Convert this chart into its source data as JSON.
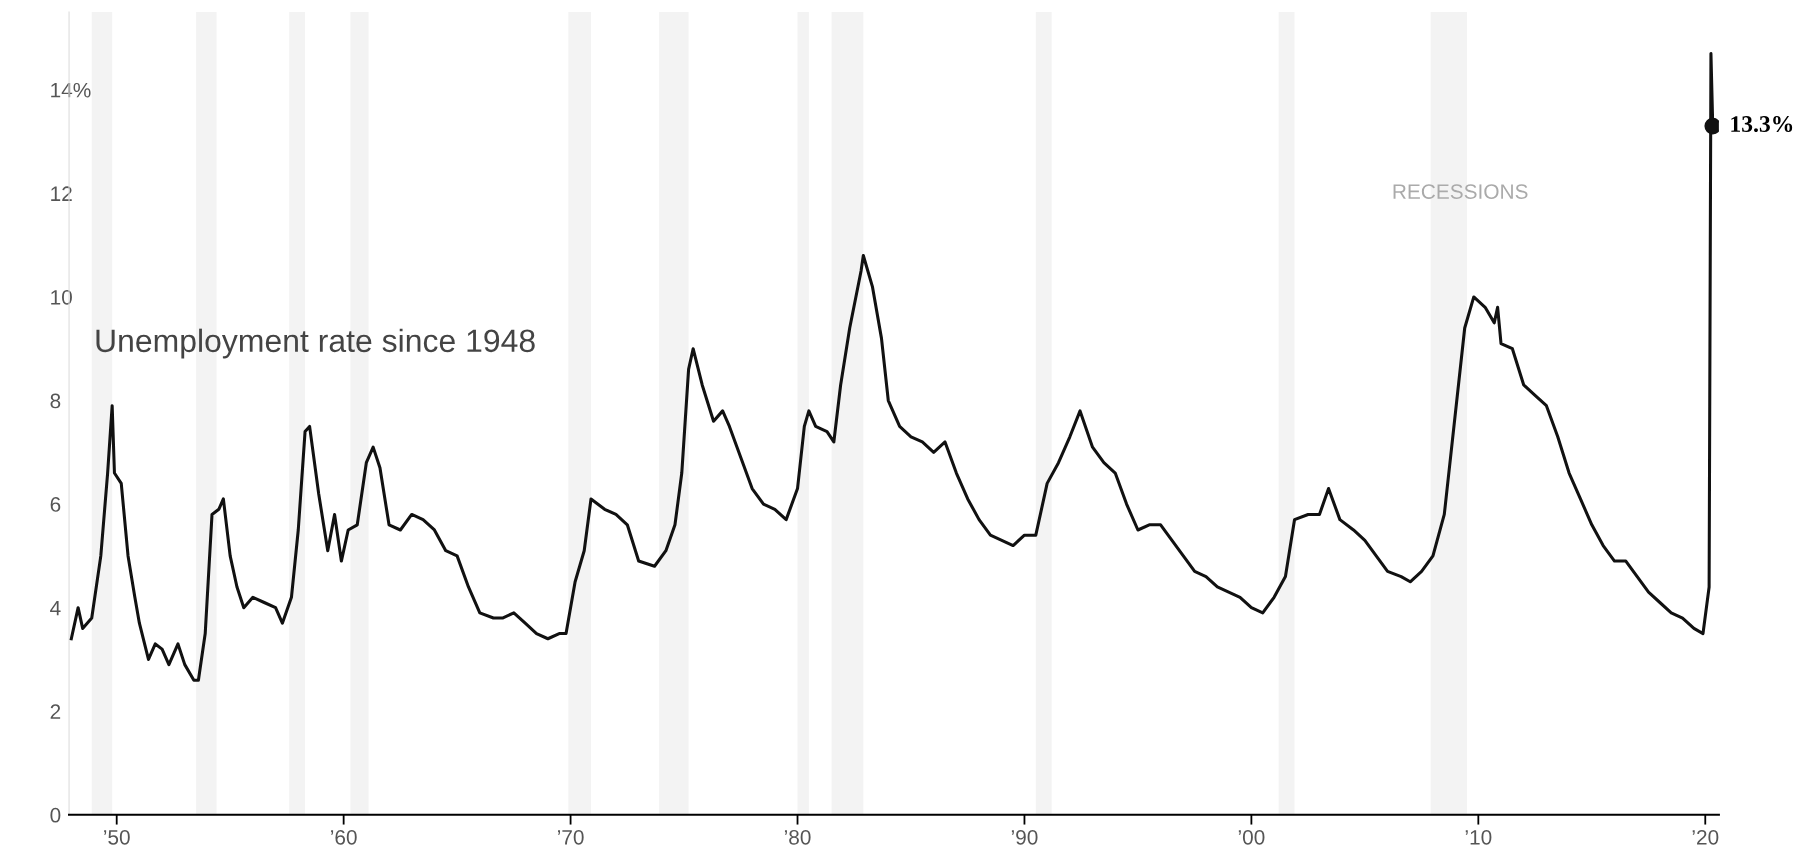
{
  "chart_data": {
    "type": "line",
    "title": "Unemployment rate since 1948",
    "x": [
      1948.0,
      1948.3,
      1948.5,
      1948.9,
      1949.3,
      1949.6,
      1949.8,
      1949.9,
      1950.2,
      1950.5,
      1950.8,
      1951.0,
      1951.4,
      1951.7,
      1952.0,
      1952.3,
      1952.7,
      1953.0,
      1953.4,
      1953.6,
      1953.9,
      1954.2,
      1954.5,
      1954.7,
      1955.0,
      1955.3,
      1955.6,
      1956.0,
      1956.5,
      1957.0,
      1957.3,
      1957.7,
      1958.0,
      1958.3,
      1958.5,
      1958.9,
      1959.3,
      1959.6,
      1959.9,
      1960.2,
      1960.6,
      1961.0,
      1961.3,
      1961.6,
      1962.0,
      1962.5,
      1963.0,
      1963.5,
      1964.0,
      1964.5,
      1965.0,
      1965.5,
      1966.0,
      1966.6,
      1967.0,
      1967.5,
      1968.0,
      1968.5,
      1969.0,
      1969.5,
      1969.8,
      1970.2,
      1970.6,
      1970.9,
      1971.5,
      1972.0,
      1972.5,
      1973.0,
      1973.7,
      1974.2,
      1974.6,
      1974.9,
      1975.2,
      1975.4,
      1975.8,
      1976.3,
      1976.7,
      1977.0,
      1977.5,
      1978.0,
      1978.5,
      1979.0,
      1979.5,
      1980.0,
      1980.3,
      1980.5,
      1980.8,
      1981.3,
      1981.6,
      1981.9,
      1982.3,
      1982.8,
      1982.9,
      1983.3,
      1983.7,
      1984.0,
      1984.5,
      1985.0,
      1985.5,
      1986.0,
      1986.5,
      1987.0,
      1987.5,
      1988.0,
      1988.5,
      1989.0,
      1989.5,
      1990.0,
      1990.5,
      1991.0,
      1991.5,
      1992.0,
      1992.45,
      1993.0,
      1993.5,
      1994.0,
      1994.5,
      1995.0,
      1995.5,
      1996.0,
      1996.5,
      1997.0,
      1997.5,
      1998.0,
      1998.5,
      1999.0,
      1999.5,
      2000.0,
      2000.5,
      2001.0,
      2001.5,
      2001.9,
      2002.5,
      2003.0,
      2003.4,
      2003.9,
      2004.5,
      2005.0,
      2005.5,
      2006.0,
      2006.6,
      2007.0,
      2007.5,
      2008.0,
      2008.5,
      2009.0,
      2009.4,
      2009.8,
      2010.3,
      2010.7,
      2010.85,
      2011.0,
      2011.5,
      2012.0,
      2012.5,
      2013.0,
      2013.5,
      2014.0,
      2014.5,
      2015.0,
      2015.5,
      2016.0,
      2016.5,
      2017.0,
      2017.5,
      2018.0,
      2018.5,
      2019.0,
      2019.5,
      2019.9,
      2020.17,
      2020.25,
      2020.33
    ],
    "series": [
      {
        "color": "#111111",
        "values": [
          3.4,
          4.0,
          3.6,
          3.8,
          5.0,
          6.6,
          7.9,
          6.6,
          6.4,
          5.0,
          4.2,
          3.7,
          3.0,
          3.3,
          3.2,
          2.9,
          3.3,
          2.9,
          2.6,
          2.6,
          3.5,
          5.8,
          5.9,
          6.1,
          5.0,
          4.4,
          4.0,
          4.2,
          4.1,
          4.0,
          3.7,
          4.2,
          5.5,
          7.4,
          7.5,
          6.2,
          5.1,
          5.8,
          4.9,
          5.5,
          5.6,
          6.8,
          7.1,
          6.7,
          5.6,
          5.5,
          5.8,
          5.7,
          5.5,
          5.1,
          5.0,
          4.4,
          3.9,
          3.8,
          3.8,
          3.9,
          3.7,
          3.5,
          3.4,
          3.5,
          3.5,
          4.5,
          5.1,
          6.1,
          5.9,
          5.8,
          5.6,
          4.9,
          4.8,
          5.1,
          5.6,
          6.6,
          8.6,
          9.0,
          8.3,
          7.6,
          7.8,
          7.5,
          6.9,
          6.3,
          6.0,
          5.9,
          5.7,
          6.3,
          7.5,
          7.8,
          7.5,
          7.4,
          7.2,
          8.3,
          9.4,
          10.5,
          10.8,
          10.2,
          9.2,
          8.0,
          7.5,
          7.3,
          7.2,
          7.0,
          7.2,
          6.6,
          6.1,
          5.7,
          5.4,
          5.3,
          5.2,
          5.4,
          5.4,
          6.4,
          6.8,
          7.3,
          7.8,
          7.1,
          6.8,
          6.6,
          6.0,
          5.5,
          5.6,
          5.6,
          5.3,
          5.0,
          4.7,
          4.6,
          4.4,
          4.3,
          4.2,
          4.0,
          3.9,
          4.2,
          4.6,
          5.7,
          5.8,
          5.8,
          6.3,
          5.7,
          5.5,
          5.3,
          5.0,
          4.7,
          4.6,
          4.5,
          4.7,
          5.0,
          5.8,
          7.8,
          9.4,
          10.0,
          9.8,
          9.5,
          9.8,
          9.1,
          9.0,
          8.3,
          8.1,
          7.9,
          7.3,
          6.6,
          6.1,
          5.6,
          5.2,
          4.9,
          4.9,
          4.6,
          4.3,
          4.1,
          3.9,
          3.8,
          3.6,
          3.5,
          4.4,
          14.7,
          13.3
        ]
      }
    ],
    "annotations": [
      "RECESSIONS",
      {
        "text": "13.3%",
        "x": 2020.33,
        "y": 13.3
      }
    ],
    "bands": [
      {
        "axis": "x",
        "from": 1948.9,
        "to": 1949.8,
        "color": "#f3f3f3"
      },
      {
        "axis": "x",
        "from": 1953.5,
        "to": 1954.4,
        "color": "#f3f3f3"
      },
      {
        "axis": "x",
        "from": 1957.6,
        "to": 1958.3,
        "color": "#f3f3f3"
      },
      {
        "axis": "x",
        "from": 1960.3,
        "to": 1961.1,
        "color": "#f3f3f3"
      },
      {
        "axis": "x",
        "from": 1969.9,
        "to": 1970.9,
        "color": "#f3f3f3"
      },
      {
        "axis": "x",
        "from": 1973.9,
        "to": 1975.2,
        "color": "#f3f3f3"
      },
      {
        "axis": "x",
        "from": 1980.0,
        "to": 1980.5,
        "color": "#f3f3f3"
      },
      {
        "axis": "x",
        "from": 1981.5,
        "to": 1982.9,
        "color": "#f3f3f3"
      },
      {
        "axis": "x",
        "from": 1990.5,
        "to": 1991.2,
        "color": "#f3f3f3"
      },
      {
        "axis": "x",
        "from": 2001.2,
        "to": 2001.9,
        "color": "#f3f3f3"
      },
      {
        "axis": "x",
        "from": 2007.9,
        "to": 2009.5,
        "color": "#f3f3f3"
      }
    ],
    "xlim": [
      1947.9,
      2020.6
    ],
    "xticks": [
      {
        "value": 1950,
        "label": "’50"
      },
      {
        "value": 1960,
        "label": "’60"
      },
      {
        "value": 1970,
        "label": "’70"
      },
      {
        "value": 1980,
        "label": "’80"
      },
      {
        "value": 1990,
        "label": "’90"
      },
      {
        "value": 2000,
        "label": "’00"
      },
      {
        "value": 2010,
        "label": "’10"
      },
      {
        "value": 2020,
        "label": "’20"
      }
    ],
    "ylim": [
      0,
      15.5
    ],
    "yticks": [
      0,
      2,
      4,
      6,
      8,
      10,
      12,
      {
        "value": 14,
        "label": "14%"
      }
    ],
    "grid": false,
    "legend": false,
    "marker": "none",
    "line_style": "solid"
  }
}
